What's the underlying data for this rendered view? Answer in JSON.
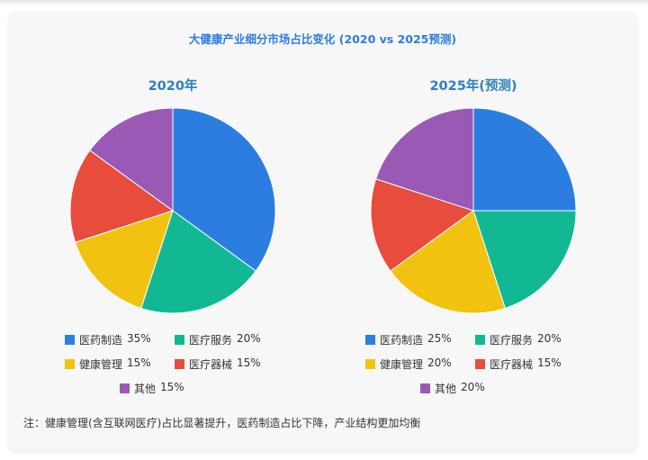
{
  "chart_data": {
    "type": "pie",
    "title": "大健康产业细分市场占比变化 (2020 vs 2025预测)",
    "charts": [
      {
        "title": "2020年",
        "slices": [
          {
            "label": "医药制造",
            "value": 35,
            "color": "#2b7de0"
          },
          {
            "label": "医疗服务",
            "value": 20,
            "color": "#12b893"
          },
          {
            "label": "健康管理",
            "value": 15,
            "color": "#f2c211"
          },
          {
            "label": "医疗器械",
            "value": 15,
            "color": "#e74c3c"
          },
          {
            "label": "其他",
            "value": 15,
            "color": "#9b59b6"
          }
        ]
      },
      {
        "title": "2025年(预测)",
        "slices": [
          {
            "label": "医药制造",
            "value": 25,
            "color": "#2b7de0"
          },
          {
            "label": "医疗服务",
            "value": 20,
            "color": "#12b893"
          },
          {
            "label": "健康管理",
            "value": 20,
            "color": "#f2c211"
          },
          {
            "label": "医疗器械",
            "value": 15,
            "color": "#e74c3c"
          },
          {
            "label": "其他",
            "value": 20,
            "color": "#9b59b6"
          }
        ]
      }
    ]
  },
  "note": "注：健康管理(含互联网医疗)占比显著提升，医药制造占比下降，产业结构更加均衡"
}
